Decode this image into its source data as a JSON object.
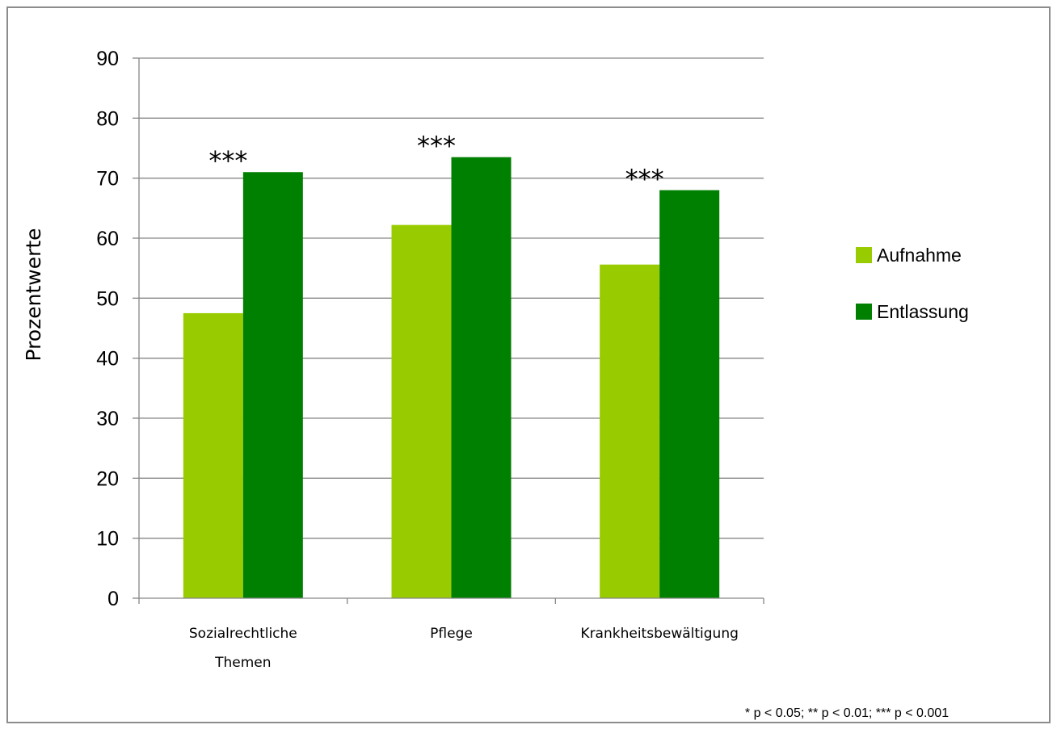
{
  "chart_data": {
    "type": "bar",
    "categories": [
      "Sozialrechtliche Themen",
      "Pflege",
      "Krankheitsbewältigung"
    ],
    "category_lines": [
      [
        "Sozialrechtliche",
        "Themen"
      ],
      [
        "Pflege"
      ],
      [
        "Krankheitsbewältigung"
      ]
    ],
    "series": [
      {
        "name": "Aufnahme",
        "values": [
          47.5,
          62.2,
          55.6
        ],
        "color": "#99cc00"
      },
      {
        "name": "Entlassung",
        "values": [
          71.0,
          73.5,
          68.0
        ],
        "color": "#008000"
      }
    ],
    "significance": [
      "***",
      "***",
      "***"
    ],
    "ylabel": "Prozentwerte",
    "xlabel": "",
    "ylim": [
      0,
      90
    ],
    "yticks": [
      0,
      10,
      20,
      30,
      40,
      50,
      60,
      70,
      80,
      90
    ],
    "grid": true,
    "legend_position": "right",
    "footnote": "* p < 0.05; ** p < 0.01; *** p < 0.001"
  }
}
